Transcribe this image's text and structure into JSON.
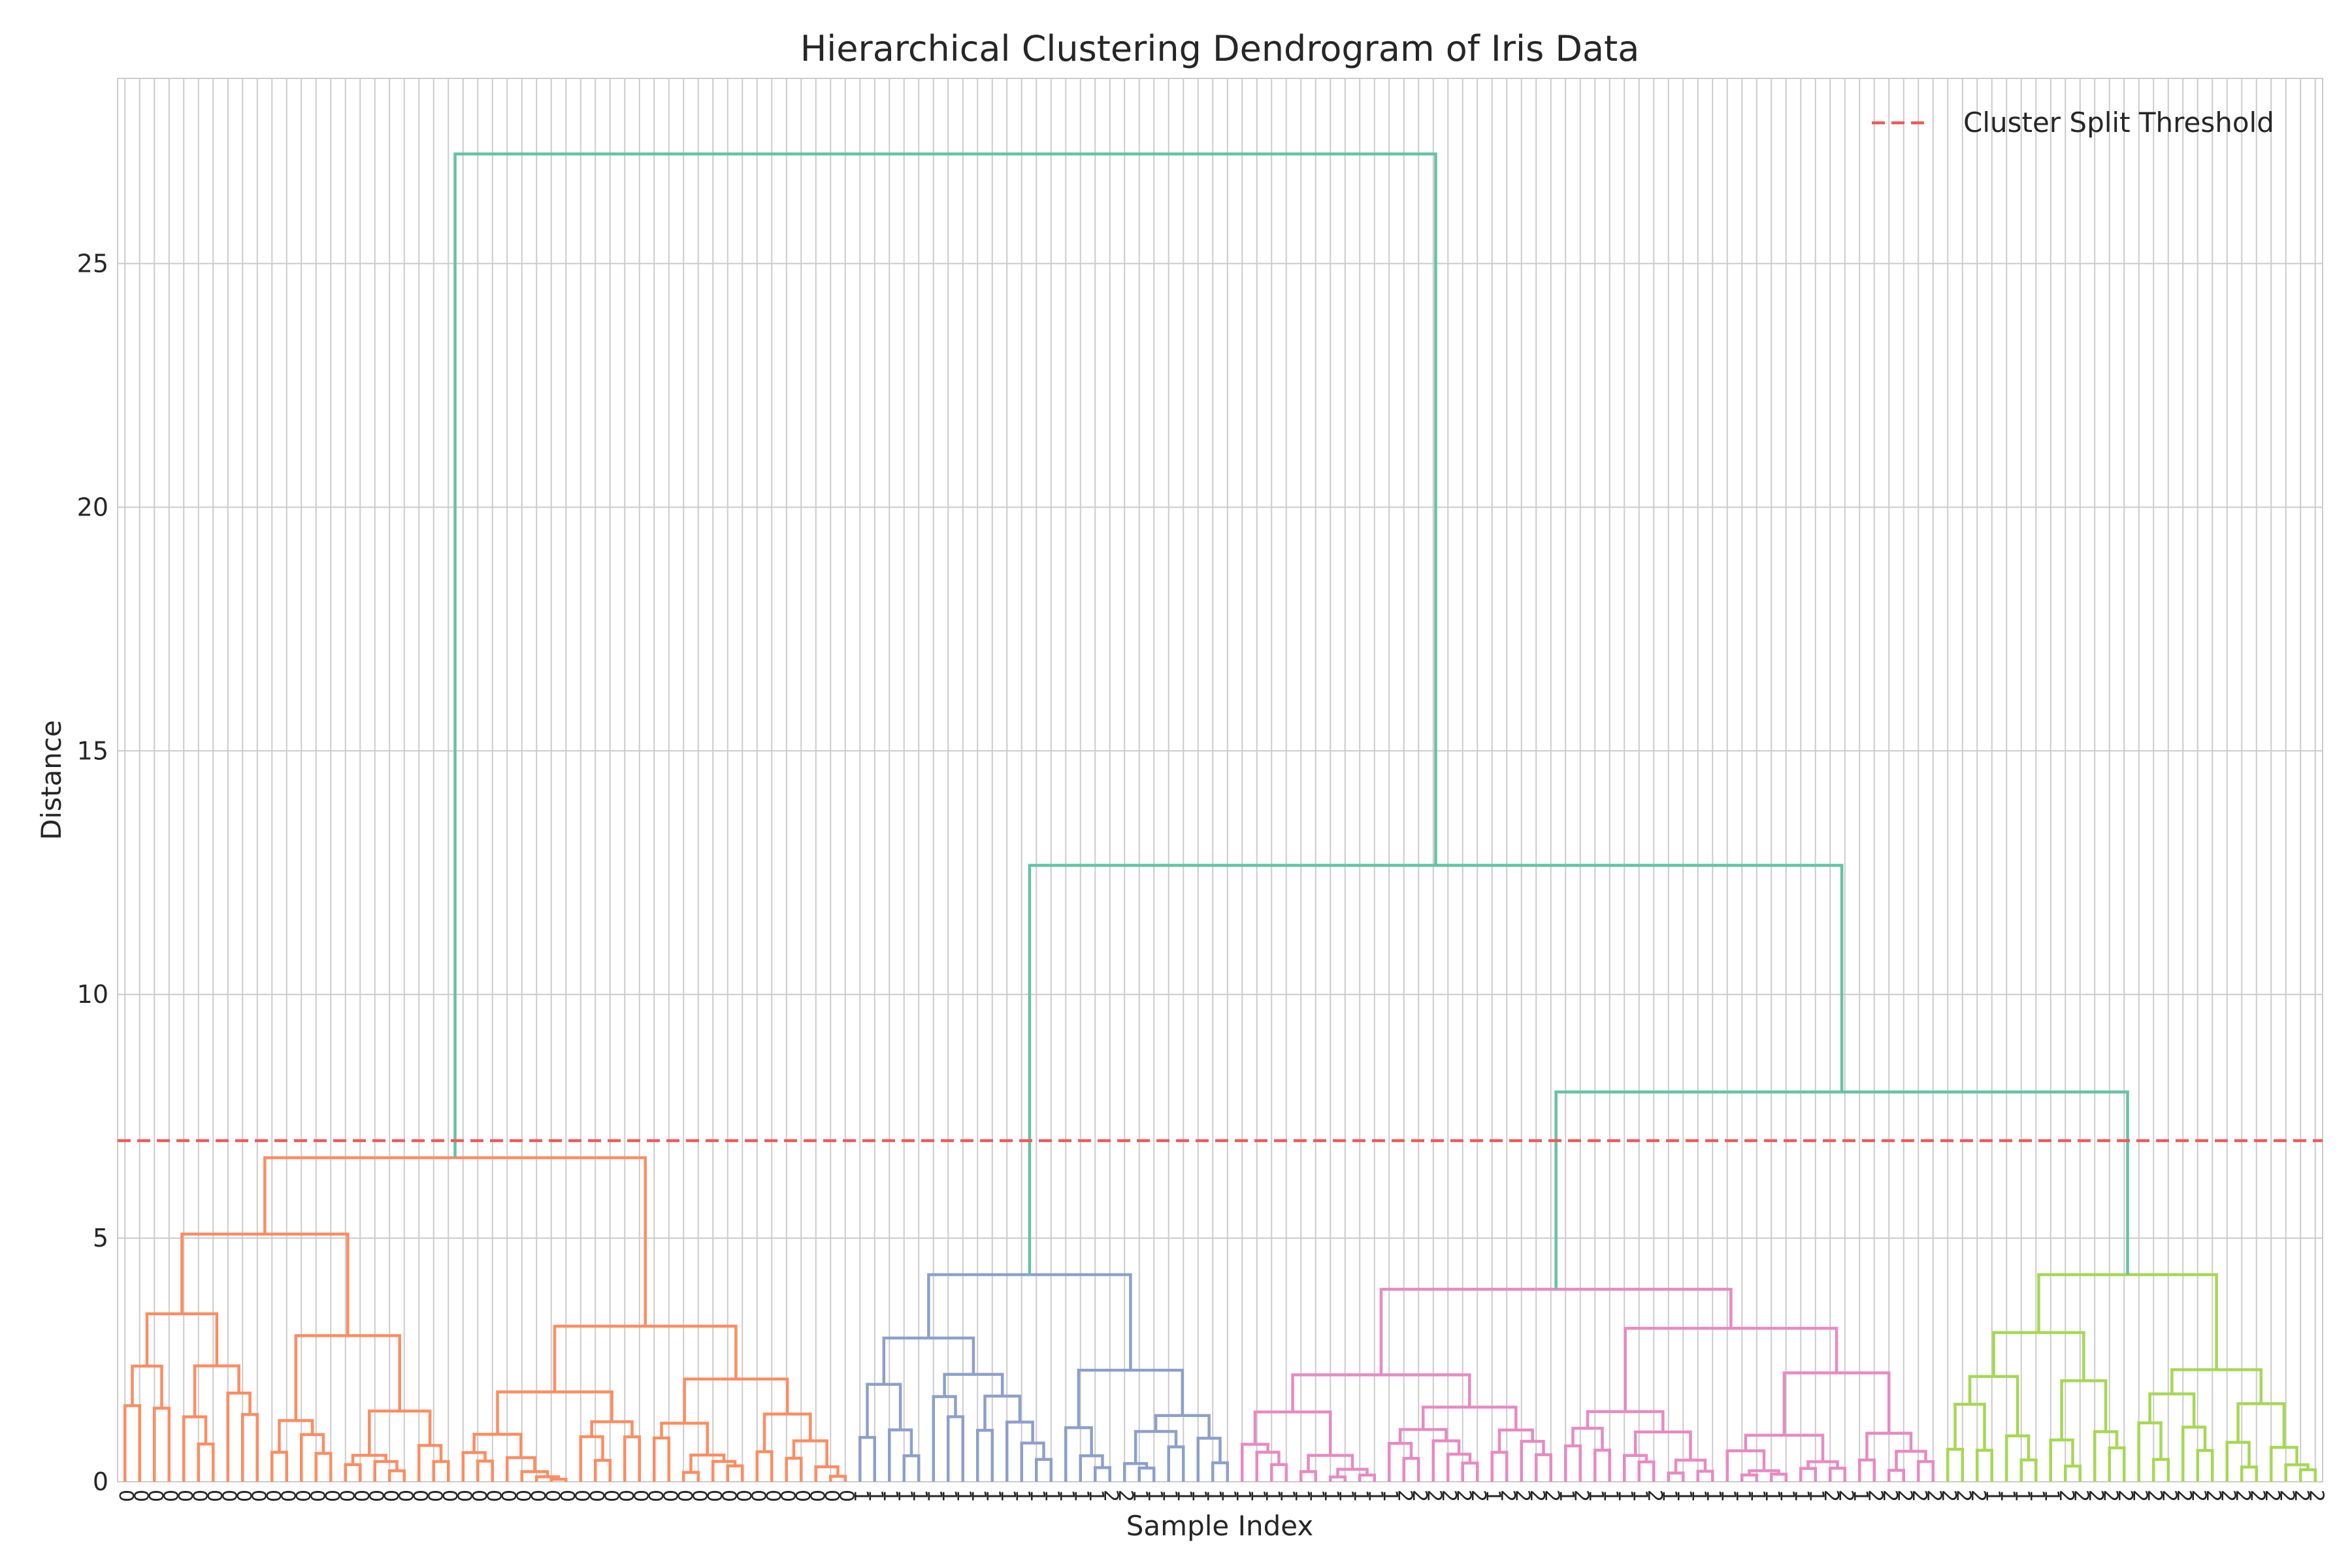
{
  "chart_data": {
    "type": "dendrogram",
    "title": "Hierarchical Clustering Dendrogram of Iris Data",
    "xlabel": "Sample Index",
    "ylabel": "Distance",
    "ylim": [
      0,
      28.8
    ],
    "yticks": [
      0,
      5,
      10,
      15,
      20,
      25
    ],
    "grid": true,
    "legend": {
      "placement": "top-right",
      "entries": [
        {
          "label": "Cluster Split Threshold",
          "color": "#ee5a5a",
          "style": "dashed"
        }
      ]
    },
    "threshold": 7.0,
    "n_leaves": 150,
    "leaf_labels": [
      "0",
      "0",
      "0",
      "0",
      "0",
      "0",
      "0",
      "0",
      "0",
      "0",
      "0",
      "0",
      "0",
      "0",
      "0",
      "0",
      "0",
      "0",
      "0",
      "0",
      "0",
      "0",
      "0",
      "0",
      "0",
      "0",
      "0",
      "0",
      "0",
      "0",
      "0",
      "0",
      "0",
      "0",
      "0",
      "0",
      "0",
      "0",
      "0",
      "0",
      "0",
      "0",
      "0",
      "0",
      "0",
      "0",
      "0",
      "0",
      "0",
      "0",
      "1",
      "1",
      "1",
      "1",
      "1",
      "1",
      "1",
      "1",
      "1",
      "1",
      "1",
      "1",
      "1",
      "1",
      "1",
      "1",
      "1",
      "2",
      "2",
      "1",
      "1",
      "1",
      "1",
      "1",
      "1",
      "1",
      "1",
      "1",
      "1",
      "1",
      "1",
      "1",
      "1",
      "1",
      "1",
      "1",
      "1",
      "2",
      "2",
      "2",
      "2",
      "2",
      "2",
      "1",
      "2",
      "2",
      "2",
      "2",
      "1",
      "2",
      "1",
      "1",
      "1",
      "1",
      "2",
      "1",
      "1",
      "1",
      "1",
      "1",
      "1",
      "1",
      "1",
      "1",
      "1",
      "1",
      "2",
      "2",
      "1",
      "2",
      "2",
      "2",
      "2",
      "2",
      "2",
      "2",
      "2",
      "1",
      "1",
      "1",
      "1",
      "1",
      "2",
      "2",
      "2",
      "2",
      "2",
      "2",
      "2",
      "2",
      "2",
      "2",
      "2",
      "2",
      "2",
      "2",
      "2",
      "2",
      "2",
      "2"
    ],
    "cluster_colors": {
      "above_threshold": "#66c2a5",
      "cluster_1": "#fc8d62",
      "cluster_2": "#8da0cb",
      "cluster_3": "#e78ac3",
      "cluster_4": "#a6d854"
    },
    "top_merges": [
      {
        "left_cluster": "cluster_1",
        "right": "merge_A",
        "height": 27.25
      },
      {
        "name": "merge_A",
        "left_cluster": "cluster_2",
        "right": "merge_B",
        "height": 12.65
      },
      {
        "name": "merge_B",
        "left_cluster": "cluster_3",
        "right_cluster": "cluster_4",
        "height": 8.0
      }
    ],
    "cluster_roots": {
      "cluster_1": 6.65,
      "cluster_2": 4.25,
      "cluster_3": 3.95,
      "cluster_4": 4.25
    }
  }
}
